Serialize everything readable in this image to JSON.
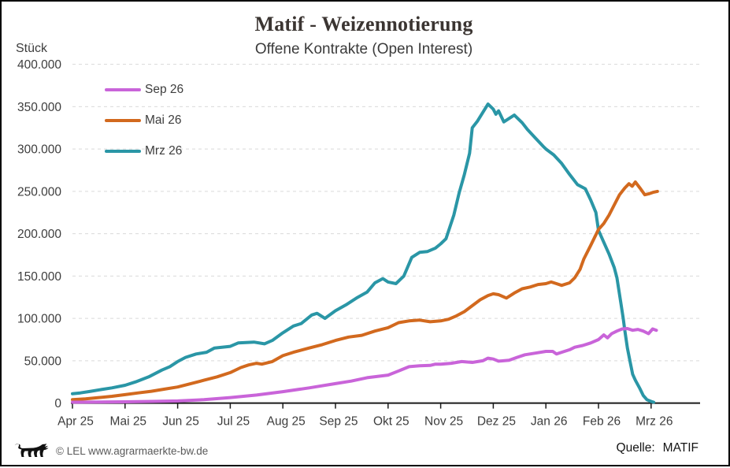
{
  "title": "Matif - Weizennotierung",
  "subtitle": "Offene Kontrakte (Open Interest)",
  "unit_label": "Stück",
  "footer": {
    "copyright": "© LEL www.agrarmaerkte-bw.de",
    "source_label": "Quelle:",
    "source_value": "MATIF"
  },
  "colors": {
    "sep26": "#c none",
    "grid": "#d9d9d9",
    "axis": "#1a1a1a",
    "text": "#3d3d3d"
  },
  "chart_data": {
    "type": "line",
    "title": "Matif - Weizennotierung",
    "subtitle": "Offene Kontrakte (Open Interest)",
    "ylabel": "Stück",
    "ylim": [
      0,
      400000
    ],
    "grid": "horizontal-dashed",
    "legend_position": "top-left-inside",
    "x_unit": "months, 0 = Apr 25 ... 11 = Mrz 26",
    "x_ticks": [
      "Apr 25",
      "Mai 25",
      "Jun 25",
      "Jul 25",
      "Aug 25",
      "Sep 25",
      "Okt 25",
      "Nov 25",
      "Dez 25",
      "Jan 26",
      "Feb 26",
      "Mrz 26"
    ],
    "y_ticks": [
      {
        "label": "400.000",
        "value": 400000
      },
      {
        "label": "350.000",
        "value": 350000
      },
      {
        "label": "300.000",
        "value": 300000
      },
      {
        "label": "250.000",
        "value": 250000
      },
      {
        "label": "200.000",
        "value": 200000
      },
      {
        "label": "150.000",
        "value": 150000
      },
      {
        "label": "100.000",
        "value": 100000
      },
      {
        "label": "50.000",
        "value": 50000
      },
      {
        "label": "0",
        "value": 0
      }
    ],
    "series": [
      {
        "name": "Sep 26",
        "color": "#c964d9",
        "points": [
          [
            0.0,
            1000
          ],
          [
            0.5,
            1200
          ],
          [
            1.0,
            1500
          ],
          [
            1.5,
            2000
          ],
          [
            2.0,
            2500
          ],
          [
            2.5,
            4000
          ],
          [
            3.0,
            6500
          ],
          [
            3.5,
            9500
          ],
          [
            4.0,
            13500
          ],
          [
            4.5,
            18000
          ],
          [
            5.0,
            23000
          ],
          [
            5.3,
            26000
          ],
          [
            5.6,
            30000
          ],
          [
            6.0,
            33000
          ],
          [
            6.2,
            38000
          ],
          [
            6.4,
            43000
          ],
          [
            6.6,
            44000
          ],
          [
            6.8,
            44500
          ],
          [
            6.9,
            46000
          ],
          [
            7.0,
            46000
          ],
          [
            7.2,
            47000
          ],
          [
            7.4,
            49000
          ],
          [
            7.6,
            48000
          ],
          [
            7.8,
            50000
          ],
          [
            7.9,
            53000
          ],
          [
            8.0,
            52000
          ],
          [
            8.1,
            49500
          ],
          [
            8.3,
            50500
          ],
          [
            8.45,
            54000
          ],
          [
            8.6,
            57000
          ],
          [
            8.8,
            59000
          ],
          [
            9.0,
            61000
          ],
          [
            9.13,
            61000
          ],
          [
            9.2,
            58000
          ],
          [
            9.3,
            60000
          ],
          [
            9.45,
            63000
          ],
          [
            9.55,
            66000
          ],
          [
            9.7,
            68000
          ],
          [
            9.85,
            71000
          ],
          [
            10.0,
            75000
          ],
          [
            10.1,
            80500
          ],
          [
            10.17,
            77000
          ],
          [
            10.25,
            82000
          ],
          [
            10.35,
            85000
          ],
          [
            10.45,
            87500
          ],
          [
            10.55,
            88000
          ],
          [
            10.65,
            86000
          ],
          [
            10.75,
            87000
          ],
          [
            10.85,
            85000
          ],
          [
            10.95,
            82000
          ],
          [
            11.03,
            87500
          ],
          [
            11.1,
            86000
          ]
        ]
      },
      {
        "name": "Mai 26",
        "color": "#d2691e",
        "points": [
          [
            0.0,
            4000
          ],
          [
            0.25,
            5000
          ],
          [
            0.5,
            6500
          ],
          [
            0.75,
            8000
          ],
          [
            1.0,
            10000
          ],
          [
            1.25,
            12000
          ],
          [
            1.5,
            14000
          ],
          [
            1.75,
            16500
          ],
          [
            2.0,
            19000
          ],
          [
            2.25,
            23000
          ],
          [
            2.5,
            27000
          ],
          [
            2.75,
            31000
          ],
          [
            3.0,
            36000
          ],
          [
            3.2,
            42000
          ],
          [
            3.35,
            45000
          ],
          [
            3.5,
            47000
          ],
          [
            3.6,
            46000
          ],
          [
            3.8,
            49000
          ],
          [
            4.0,
            56000
          ],
          [
            4.2,
            60000
          ],
          [
            4.5,
            65000
          ],
          [
            4.75,
            69000
          ],
          [
            5.0,
            74000
          ],
          [
            5.25,
            78000
          ],
          [
            5.5,
            80000
          ],
          [
            5.75,
            85000
          ],
          [
            6.0,
            89000
          ],
          [
            6.2,
            95000
          ],
          [
            6.4,
            97000
          ],
          [
            6.6,
            98000
          ],
          [
            6.8,
            96000
          ],
          [
            7.0,
            97000
          ],
          [
            7.15,
            99000
          ],
          [
            7.3,
            103000
          ],
          [
            7.45,
            108000
          ],
          [
            7.6,
            115000
          ],
          [
            7.75,
            122000
          ],
          [
            7.9,
            127000
          ],
          [
            8.0,
            129000
          ],
          [
            8.1,
            128000
          ],
          [
            8.25,
            124000
          ],
          [
            8.4,
            130000
          ],
          [
            8.55,
            135000
          ],
          [
            8.7,
            137000
          ],
          [
            8.85,
            140000
          ],
          [
            9.0,
            141000
          ],
          [
            9.1,
            143000
          ],
          [
            9.2,
            141000
          ],
          [
            9.3,
            139000
          ],
          [
            9.45,
            142000
          ],
          [
            9.55,
            148000
          ],
          [
            9.65,
            158000
          ],
          [
            9.72,
            170000
          ],
          [
            9.85,
            186000
          ],
          [
            10.0,
            205000
          ],
          [
            10.1,
            212000
          ],
          [
            10.2,
            222000
          ],
          [
            10.3,
            234000
          ],
          [
            10.4,
            246000
          ],
          [
            10.5,
            254000
          ],
          [
            10.58,
            259000
          ],
          [
            10.64,
            256000
          ],
          [
            10.7,
            261000
          ],
          [
            10.8,
            253000
          ],
          [
            10.88,
            246000
          ],
          [
            10.95,
            247000
          ],
          [
            11.05,
            249000
          ],
          [
            11.12,
            250000
          ]
        ]
      },
      {
        "name": "Mrz 26",
        "color": "#2a96a6",
        "points": [
          [
            0.0,
            11000
          ],
          [
            0.15,
            12000
          ],
          [
            0.35,
            14000
          ],
          [
            0.55,
            16000
          ],
          [
            0.75,
            18000
          ],
          [
            1.0,
            21000
          ],
          [
            1.2,
            25000
          ],
          [
            1.45,
            31000
          ],
          [
            1.7,
            39000
          ],
          [
            1.85,
            43000
          ],
          [
            2.0,
            49000
          ],
          [
            2.15,
            54000
          ],
          [
            2.35,
            58000
          ],
          [
            2.55,
            60000
          ],
          [
            2.7,
            65000
          ],
          [
            3.0,
            67000
          ],
          [
            3.15,
            71000
          ],
          [
            3.45,
            72000
          ],
          [
            3.65,
            70000
          ],
          [
            3.8,
            74000
          ],
          [
            4.0,
            83000
          ],
          [
            4.2,
            91000
          ],
          [
            4.35,
            94000
          ],
          [
            4.55,
            104000
          ],
          [
            4.65,
            106000
          ],
          [
            4.8,
            100000
          ],
          [
            5.0,
            109000
          ],
          [
            5.2,
            116000
          ],
          [
            5.4,
            124000
          ],
          [
            5.6,
            131000
          ],
          [
            5.75,
            142000
          ],
          [
            5.9,
            147000
          ],
          [
            6.0,
            143000
          ],
          [
            6.15,
            141000
          ],
          [
            6.3,
            150000
          ],
          [
            6.45,
            172000
          ],
          [
            6.6,
            178000
          ],
          [
            6.75,
            179000
          ],
          [
            6.9,
            183000
          ],
          [
            7.0,
            188000
          ],
          [
            7.1,
            194000
          ],
          [
            7.25,
            222000
          ],
          [
            7.35,
            248000
          ],
          [
            7.45,
            270000
          ],
          [
            7.55,
            295000
          ],
          [
            7.6,
            325000
          ],
          [
            7.7,
            333000
          ],
          [
            7.9,
            353000
          ],
          [
            8.0,
            347000
          ],
          [
            8.05,
            341000
          ],
          [
            8.1,
            345000
          ],
          [
            8.2,
            332000
          ],
          [
            8.4,
            340000
          ],
          [
            8.55,
            331000
          ],
          [
            8.65,
            323000
          ],
          [
            8.8,
            313000
          ],
          [
            8.95,
            303000
          ],
          [
            9.0,
            300000
          ],
          [
            9.15,
            293000
          ],
          [
            9.3,
            283000
          ],
          [
            9.45,
            270000
          ],
          [
            9.6,
            258000
          ],
          [
            9.75,
            253000
          ],
          [
            9.85,
            240000
          ],
          [
            9.95,
            225000
          ],
          [
            10.0,
            204000
          ],
          [
            10.1,
            190000
          ],
          [
            10.2,
            176000
          ],
          [
            10.3,
            160000
          ],
          [
            10.35,
            148000
          ],
          [
            10.42,
            120000
          ],
          [
            10.47,
            100000
          ],
          [
            10.5,
            86000
          ],
          [
            10.55,
            65000
          ],
          [
            10.6,
            49000
          ],
          [
            10.65,
            34000
          ],
          [
            10.7,
            27000
          ],
          [
            10.78,
            18000
          ],
          [
            10.85,
            9000
          ],
          [
            10.92,
            4000
          ],
          [
            11.0,
            2000
          ],
          [
            11.05,
            1000
          ]
        ]
      }
    ]
  }
}
